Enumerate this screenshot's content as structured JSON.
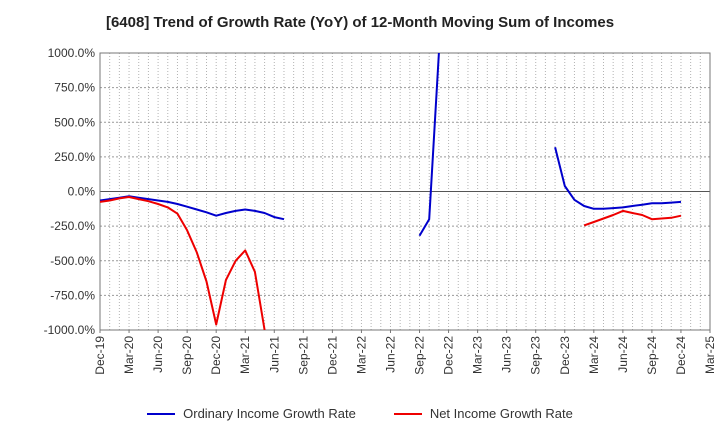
{
  "chart_data": {
    "type": "line",
    "title": "[6408]  Trend of Growth Rate (YoY) of 12-Month Moving Sum of Incomes",
    "xlabel": "",
    "ylabel": "",
    "ylim": [
      -1000,
      1000
    ],
    "yticks": [
      1000,
      750,
      500,
      250,
      0,
      -250,
      -500,
      -750,
      -1000
    ],
    "ytick_labels": [
      "1000.0%",
      "750.0%",
      "500.0%",
      "250.0%",
      "0.0%",
      "-250.0%",
      "-500.0%",
      "-750.0%",
      "-1000.0%"
    ],
    "x_labels": [
      "Dec-19",
      "Mar-20",
      "Jun-20",
      "Sep-20",
      "Dec-20",
      "Mar-21",
      "Jun-21",
      "Sep-21",
      "Dec-21",
      "Mar-22",
      "Jun-22",
      "Sep-22",
      "Dec-22",
      "Mar-23",
      "Jun-23",
      "Sep-23",
      "Dec-23",
      "Mar-24",
      "Jun-24",
      "Sep-24",
      "Dec-24",
      "Mar-25"
    ],
    "grid": true,
    "legend_position": "bottom",
    "series": [
      {
        "name": "Ordinary Income Growth Rate",
        "color": "#0000cc",
        "points": [
          [
            "2019-12",
            -65
          ],
          [
            "2020-01",
            -55
          ],
          [
            "2020-02",
            -45
          ],
          [
            "2020-03",
            -35
          ],
          [
            "2020-04",
            -45
          ],
          [
            "2020-05",
            -55
          ],
          [
            "2020-06",
            -65
          ],
          [
            "2020-07",
            -75
          ],
          [
            "2020-08",
            -90
          ],
          [
            "2020-09",
            -110
          ],
          [
            "2020-10",
            -130
          ],
          [
            "2020-11",
            -150
          ],
          [
            "2020-12",
            -175
          ],
          [
            "2021-01",
            -155
          ],
          [
            "2021-02",
            -140
          ],
          [
            "2021-03",
            -130
          ],
          [
            "2021-04",
            -140
          ],
          [
            "2021-05",
            -155
          ],
          [
            "2021-06",
            -185
          ],
          [
            "2021-07",
            -200
          ],
          null,
          [
            "2022-09",
            -320
          ],
          [
            "2022-10",
            -200
          ],
          [
            "2022-11",
            1000
          ],
          null,
          [
            "2023-11",
            320
          ],
          [
            "2023-12",
            40
          ],
          [
            "2024-01",
            -60
          ],
          [
            "2024-02",
            -105
          ],
          [
            "2024-03",
            -125
          ],
          [
            "2024-04",
            -125
          ],
          [
            "2024-05",
            -120
          ],
          [
            "2024-06",
            -115
          ],
          [
            "2024-07",
            -105
          ],
          [
            "2024-08",
            -95
          ],
          [
            "2024-09",
            -85
          ],
          [
            "2024-10",
            -85
          ],
          [
            "2024-11",
            -80
          ],
          [
            "2024-12",
            -75
          ]
        ]
      },
      {
        "name": "Net Income Growth Rate",
        "color": "#ee0000",
        "points": [
          [
            "2019-12",
            -75
          ],
          [
            "2020-01",
            -65
          ],
          [
            "2020-02",
            -50
          ],
          [
            "2020-03",
            -40
          ],
          [
            "2020-04",
            -55
          ],
          [
            "2020-05",
            -70
          ],
          [
            "2020-06",
            -90
          ],
          [
            "2020-07",
            -115
          ],
          [
            "2020-08",
            -160
          ],
          [
            "2020-09",
            -280
          ],
          [
            "2020-10",
            -440
          ],
          [
            "2020-11",
            -650
          ],
          [
            "2020-12",
            -960
          ],
          [
            "2021-01",
            -640
          ],
          [
            "2021-02",
            -500
          ],
          [
            "2021-03",
            -425
          ],
          [
            "2021-04",
            -580
          ],
          [
            "2021-05",
            -1000
          ],
          null,
          [
            "2024-02",
            -245
          ],
          [
            "2024-03",
            -220
          ],
          [
            "2024-04",
            -195
          ],
          [
            "2024-05",
            -170
          ],
          [
            "2024-06",
            -140
          ],
          [
            "2024-07",
            -155
          ],
          [
            "2024-08",
            -170
          ],
          [
            "2024-09",
            -200
          ],
          [
            "2024-10",
            -195
          ],
          [
            "2024-11",
            -190
          ],
          [
            "2024-12",
            -175
          ]
        ]
      }
    ]
  }
}
